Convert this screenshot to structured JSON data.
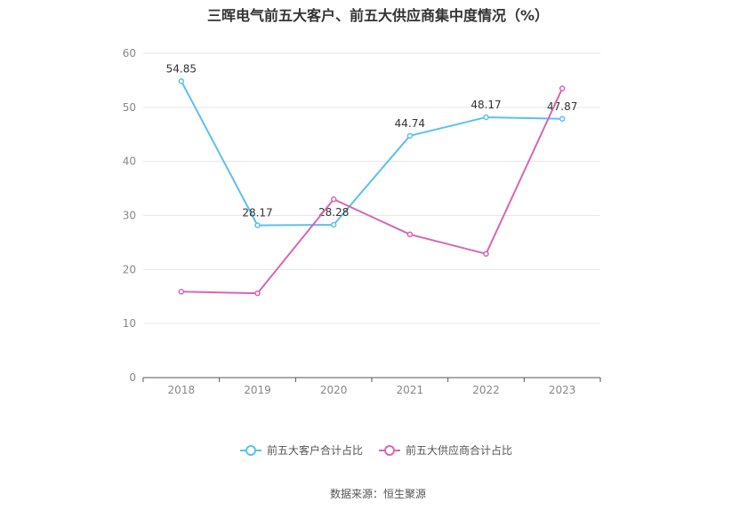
{
  "chart_data": {
    "type": "line",
    "title": "三晖电气前五大客户、前五大供应商集中度情况（%）",
    "categories": [
      "2018",
      "2019",
      "2020",
      "2021",
      "2022",
      "2023"
    ],
    "ylim": [
      0,
      60
    ],
    "yticks": [
      0,
      10,
      20,
      30,
      40,
      50,
      60
    ],
    "grid": true,
    "legend_position": "bottom",
    "series": [
      {
        "name": "前五大客户合计占比",
        "values": [
          54.85,
          28.17,
          28.28,
          44.74,
          48.17,
          47.87
        ],
        "color": "#5bc0f0",
        "labels": [
          "54.85",
          "28.17",
          "28.28",
          "44.74",
          "48.17",
          "47.87"
        ]
      },
      {
        "name": "前五大供应商合计占比",
        "values": [
          15.9,
          15.6,
          33.0,
          26.5,
          22.9,
          53.5
        ],
        "color": "#d766b4"
      }
    ]
  },
  "source": "数据来源：恒生聚源"
}
